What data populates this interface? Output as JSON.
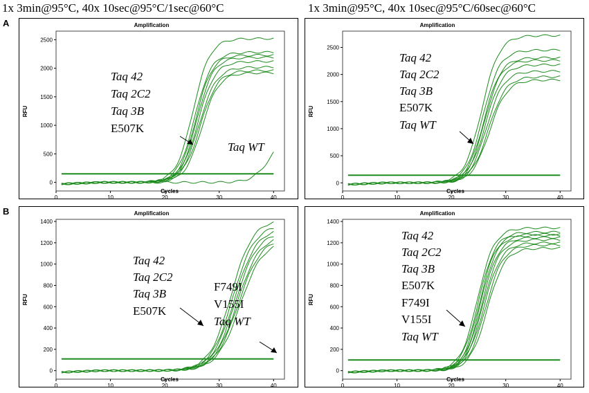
{
  "column_titles": [
    "1x 3min@95°C, 40x 10sec@95°C/1sec@60°C",
    "1x 3min@95°C, 40x 10sec@95°C/60sec@60°C"
  ],
  "row_labels": [
    "A",
    "B"
  ],
  "colors": {
    "curve": "#1c8a1c",
    "background": "#ffffff"
  },
  "chart_data": [
    {
      "type": "line",
      "row": "A",
      "condition": "1x 3min@95°C, 40x 10sec@95°C/1sec@60°C",
      "title": "Amplification",
      "xlabel": "Cycles",
      "ylabel": "RFU",
      "xlim": [
        0,
        42
      ],
      "ylim": [
        -150,
        2650
      ],
      "xticks": [
        0,
        10,
        20,
        30,
        40
      ],
      "yticks": [
        0,
        500,
        1000,
        1500,
        2000,
        2500
      ],
      "threshold": 150,
      "series": [
        {
          "name": "amplified",
          "ct": 25.2,
          "plateau": 2520,
          "slope": 1.55
        },
        {
          "name": "amplified",
          "ct": 25.5,
          "plateau": 2280,
          "slope": 1.55
        },
        {
          "name": "amplified",
          "ct": 25.7,
          "plateau": 2230,
          "slope": 1.5
        },
        {
          "name": "amplified",
          "ct": 25.9,
          "plateau": 2190,
          "slope": 1.5
        },
        {
          "name": "amplified",
          "ct": 26.1,
          "plateau": 2120,
          "slope": 1.55
        },
        {
          "name": "amplified",
          "ct": 26.3,
          "plateau": 2020,
          "slope": 1.6
        },
        {
          "name": "amplified",
          "ct": 26.5,
          "plateau": 1960,
          "slope": 1.6
        },
        {
          "name": "amplified",
          "ct": 26.8,
          "plateau": 1920,
          "slope": 1.55
        },
        {
          "name": "Taq WT",
          "ct": 39.5,
          "plateau": 900,
          "slope": 1.6
        }
      ],
      "annotations": {
        "group": [
          "Taq 42",
          "Taq 2C2",
          "Taq 3B",
          "E507K"
        ],
        "wt": "Taq WT"
      }
    },
    {
      "type": "line",
      "row": "A",
      "condition": "1x 3min@95°C, 40x 10sec@95°C/60sec@60°C",
      "title": "Amplification",
      "xlabel": "Cycles",
      "ylabel": "RFU",
      "xlim": [
        0,
        42
      ],
      "ylim": [
        -150,
        2800
      ],
      "xticks": [
        0,
        10,
        20,
        30,
        40
      ],
      "yticks": [
        0,
        500,
        1000,
        1500,
        2000,
        2500
      ],
      "threshold": 140,
      "series": [
        {
          "name": "amplified",
          "ct": 25.6,
          "plateau": 2720,
          "slope": 1.6
        },
        {
          "name": "amplified",
          "ct": 25.8,
          "plateau": 2450,
          "slope": 1.55
        },
        {
          "name": "amplified",
          "ct": 26.0,
          "plateau": 2310,
          "slope": 1.55
        },
        {
          "name": "amplified",
          "ct": 26.1,
          "plateau": 2260,
          "slope": 1.5
        },
        {
          "name": "amplified",
          "ct": 26.3,
          "plateau": 2180,
          "slope": 1.55
        },
        {
          "name": "amplified",
          "ct": 26.5,
          "plateau": 2060,
          "slope": 1.55
        },
        {
          "name": "amplified",
          "ct": 26.8,
          "plateau": 1960,
          "slope": 1.6
        },
        {
          "name": "amplified",
          "ct": 27.0,
          "plateau": 1900,
          "slope": 1.6
        }
      ],
      "annotations": {
        "group": [
          "Taq 42",
          "Taq 2C2",
          "Taq 3B",
          "E507K",
          "Taq WT"
        ]
      }
    },
    {
      "type": "line",
      "row": "B",
      "condition": "1x 3min@95°C, 40x 10sec@95°C/1sec@60°C",
      "title": "Amplification",
      "xlabel": "Cycles",
      "ylabel": "RFU",
      "xlim": [
        0,
        42
      ],
      "ylim": [
        -80,
        1420
      ],
      "xticks": [
        0,
        10,
        20,
        30,
        40
      ],
      "yticks": [
        0,
        200,
        400,
        600,
        800,
        1000,
        1200,
        1400
      ],
      "threshold": 110,
      "series": [
        {
          "name": "amplified",
          "ct": 32.2,
          "plateau": 1420,
          "slope": 2.0
        },
        {
          "name": "amplified",
          "ct": 32.5,
          "plateau": 1370,
          "slope": 2.0
        },
        {
          "name": "amplified",
          "ct": 32.8,
          "plateau": 1340,
          "slope": 2.05
        },
        {
          "name": "amplified",
          "ct": 33.0,
          "plateau": 1300,
          "slope": 2.0
        },
        {
          "name": "amplified",
          "ct": 33.3,
          "plateau": 1270,
          "slope": 2.05
        },
        {
          "name": "amplified",
          "ct": 33.5,
          "plateau": 1250,
          "slope": 2.1
        },
        {
          "name": "amplified",
          "ct": 33.8,
          "plateau": 1220,
          "slope": 2.1
        }
      ],
      "annotations": {
        "group": [
          "Taq 42",
          "Taq 2C2",
          "Taq 3B",
          "E507K"
        ],
        "right": [
          "F749I",
          "V155I",
          "Taq WT"
        ]
      }
    },
    {
      "type": "line",
      "row": "B",
      "condition": "1x 3min@95°C, 40x 10sec@95°C/60sec@60°C",
      "title": "Amplification",
      "xlabel": "Cycles",
      "ylabel": "RFU",
      "xlim": [
        0,
        42
      ],
      "ylim": [
        -80,
        1420
      ],
      "xticks": [
        0,
        10,
        20,
        30,
        40
      ],
      "yticks": [
        0,
        200,
        400,
        600,
        800,
        1000,
        1200,
        1400
      ],
      "threshold": 100,
      "series": [
        {
          "name": "amplified",
          "ct": 24.8,
          "plateau": 1340,
          "slope": 1.55
        },
        {
          "name": "amplified",
          "ct": 25.0,
          "plateau": 1300,
          "slope": 1.55
        },
        {
          "name": "amplified",
          "ct": 25.2,
          "plateau": 1280,
          "slope": 1.5
        },
        {
          "name": "amplified",
          "ct": 25.4,
          "plateau": 1270,
          "slope": 1.5
        },
        {
          "name": "amplified",
          "ct": 25.6,
          "plateau": 1250,
          "slope": 1.55
        },
        {
          "name": "amplified",
          "ct": 25.8,
          "plateau": 1230,
          "slope": 1.55
        },
        {
          "name": "amplified",
          "ct": 26.0,
          "plateau": 1200,
          "slope": 1.6
        },
        {
          "name": "amplified",
          "ct": 26.3,
          "plateau": 1180,
          "slope": 1.6
        },
        {
          "name": "amplified",
          "ct": 26.6,
          "plateau": 1150,
          "slope": 1.6
        }
      ],
      "annotations": {
        "group": [
          "Taq 42",
          "Taq 2C2",
          "Taq 3B",
          "E507K",
          "F749I",
          "V155I",
          "Taq WT"
        ]
      }
    }
  ]
}
